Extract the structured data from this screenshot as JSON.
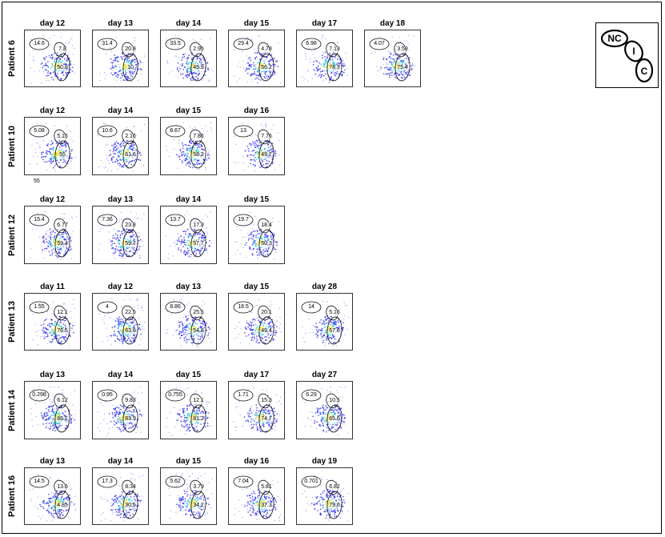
{
  "colors": {
    "frame": "#000000",
    "dots_low": "#2a2af0",
    "dots_mid": "#20c8e0",
    "dots_high": "#f0e020",
    "dots_peak": "#f03010"
  },
  "legend": {
    "labels": [
      "NC",
      "I",
      "C"
    ]
  },
  "rows": [
    {
      "label": "Patient 6",
      "panels": [
        {
          "title": "day 12",
          "gates": [
            "14.6",
            "7.8",
            "50.8"
          ]
        },
        {
          "title": "day 13",
          "gates": [
            "31.4",
            "20.8",
            "10"
          ]
        },
        {
          "title": "day 14",
          "gates": [
            "33.5",
            "2.95",
            "45.9"
          ]
        },
        {
          "title": "day 15",
          "gates": [
            "29.4",
            "4.78",
            "56.2"
          ]
        },
        {
          "title": "day 17",
          "gates": [
            "6.98",
            "7.13",
            "78.3"
          ]
        },
        {
          "title": "day 18",
          "gates": [
            "4.07",
            "3.58",
            "75.4"
          ]
        }
      ]
    },
    {
      "label": "Patient 10",
      "panels": [
        {
          "title": "day 12",
          "gates": [
            "5.08",
            "5.15",
            "55"
          ],
          "extra": "55"
        },
        {
          "title": "day 14",
          "gates": [
            "10.6",
            "2.16",
            "61.6"
          ]
        },
        {
          "title": "day 15",
          "gates": [
            "8.67",
            "7.86",
            "58.2"
          ]
        },
        {
          "title": "day 16",
          "gates": [
            "13",
            "7.76",
            "49.7"
          ]
        }
      ]
    },
    {
      "label": "Patient 12",
      "panels": [
        {
          "title": "day 12",
          "gates": [
            "15.4",
            "6.77",
            "59.4"
          ]
        },
        {
          "title": "day 13",
          "gates": [
            "7.36",
            "23.8",
            "59.7"
          ]
        },
        {
          "title": "day 14",
          "gates": [
            "13.7",
            "17.3",
            "57.7"
          ]
        },
        {
          "title": "day 15",
          "gates": [
            "19.7",
            "18.4",
            "50.3"
          ]
        }
      ]
    },
    {
      "label": "Patient 13",
      "panels": [
        {
          "title": "day 11",
          "gates": [
            "1.55",
            "12.1",
            "76.5"
          ]
        },
        {
          "title": "day 12",
          "gates": [
            "4",
            "22.5",
            "63.9"
          ]
        },
        {
          "title": "day 13",
          "gates": [
            "8.86",
            "25.5",
            "54.8"
          ]
        },
        {
          "title": "day 15",
          "gates": [
            "18.5",
            "20.1",
            "49.4"
          ]
        },
        {
          "title": "day 28",
          "gates": [
            "14",
            "5.16",
            "57.6"
          ]
        }
      ]
    },
    {
      "label": "Patient 14",
      "panels": [
        {
          "title": "day 13",
          "gates": [
            "0.298",
            "6.12",
            "86.2"
          ]
        },
        {
          "title": "day 14",
          "gates": [
            "0.95",
            "9.83",
            "83.9"
          ]
        },
        {
          "title": "day 15",
          "gates": [
            "0.755",
            "12.1",
            "81.2"
          ]
        },
        {
          "title": "day 17",
          "gates": [
            "1.71",
            "15.3",
            "74.7"
          ]
        },
        {
          "title": "day 27",
          "gates": [
            "6.29",
            "10.5",
            "65.6"
          ]
        }
      ]
    },
    {
      "label": "Patient 16",
      "panels": [
        {
          "title": "day 13",
          "gates": [
            "14.5",
            "13.6",
            "4.85"
          ]
        },
        {
          "title": "day 14",
          "gates": [
            "17.3",
            "8.34",
            "30.5"
          ]
        },
        {
          "title": "day 15",
          "gates": [
            "5.62",
            "3.79",
            "34.2"
          ]
        },
        {
          "title": "day 16",
          "gates": [
            "7.04",
            "5.81",
            "37.3"
          ]
        },
        {
          "title": "day 19",
          "gates": [
            "0.701",
            "6.82",
            "79.6"
          ]
        }
      ]
    }
  ]
}
